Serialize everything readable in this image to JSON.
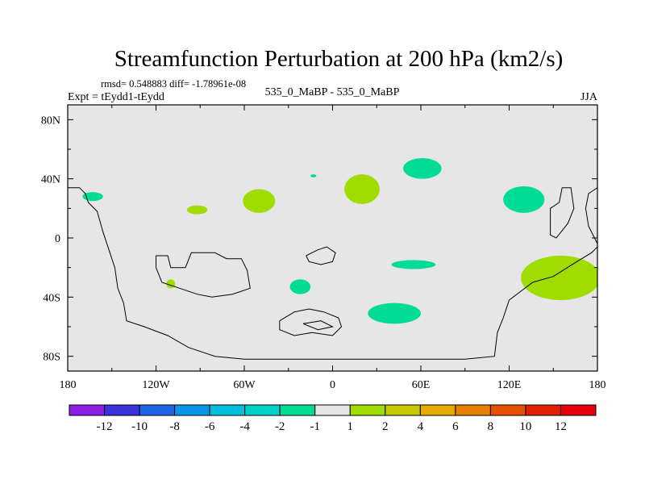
{
  "chart_data": {
    "type": "map",
    "title": "Streamfunction Perturbation at 200 hPa (km2/s)",
    "stats": "rmsd= 0.548883 diff= -1.78961e-08",
    "left_label": "Expt = tEydd1-tEydd",
    "center_label": "535_0_MaBP - 535_0_MaBP",
    "right_label": "JJA",
    "x_tick_labels": [
      "180",
      "120W",
      "60W",
      "0",
      "60E",
      "120E",
      "180"
    ],
    "x_tick_values": [
      -180,
      -120,
      -60,
      0,
      60,
      120,
      180
    ],
    "y_tick_labels": [
      "80N",
      "40N",
      "0",
      "40S",
      "80S"
    ],
    "y_tick_values": [
      80,
      40,
      0,
      -40,
      -80
    ],
    "xlim": [
      -180,
      180
    ],
    "ylim": [
      -90,
      90
    ],
    "background_color": "#e6e6e6",
    "colorbar": {
      "tick_labels": [
        "-12",
        "-10",
        "-8",
        "-6",
        "-4",
        "-2",
        "-1",
        "1",
        "2",
        "4",
        "6",
        "8",
        "10",
        "12"
      ],
      "colors": [
        "#8c1ee6",
        "#3c32dc",
        "#1e64e6",
        "#0a96e6",
        "#00bedc",
        "#00d2c8",
        "#00dc96",
        "#e6e6e6",
        "#a0dc00",
        "#c8c800",
        "#e6aa00",
        "#e68200",
        "#e65000",
        "#e61e00",
        "#e6000a"
      ]
    },
    "anomalies": [
      {
        "lon": -163,
        "lat": 28,
        "rlon": 7,
        "rlat": 3,
        "level": "-2 to -1",
        "color": "#00dc96"
      },
      {
        "lon": -92,
        "lat": 19,
        "rlon": 7,
        "rlat": 3,
        "level": "1 to 2",
        "color": "#a0dc00"
      },
      {
        "lon": -50,
        "lat": 25,
        "rlon": 11,
        "rlat": 8,
        "level": "1 to 2",
        "color": "#a0dc00"
      },
      {
        "lon": -13,
        "lat": 42,
        "rlon": 2,
        "rlat": 1,
        "level": "-2 to -1",
        "color": "#00dc96"
      },
      {
        "lon": 20,
        "lat": 33,
        "rlon": 12,
        "rlat": 10,
        "level": "1 to 2",
        "color": "#a0dc00"
      },
      {
        "lon": 61,
        "lat": 47,
        "rlon": 13,
        "rlat": 7,
        "level": "-2 to -1",
        "color": "#00dc96"
      },
      {
        "lon": 130,
        "lat": 26,
        "rlon": 14,
        "rlat": 9,
        "level": "-2 to -1",
        "color": "#00dc96"
      },
      {
        "lon": 55,
        "lat": -18,
        "rlon": 15,
        "rlat": 3,
        "level": "-2 to -1",
        "color": "#00dc96"
      },
      {
        "lon": -22,
        "lat": -33,
        "rlon": 7,
        "rlat": 5,
        "level": "-2 to -1",
        "color": "#00dc96"
      },
      {
        "lon": -110,
        "lat": -31,
        "rlon": 3,
        "rlat": 3,
        "level": "1 to 2",
        "color": "#a0dc00"
      },
      {
        "lon": 42,
        "lat": -51,
        "rlon": 18,
        "rlat": 7,
        "level": "-2 to -1",
        "color": "#00dc96"
      },
      {
        "lon": 155,
        "lat": -27,
        "rlon": 27,
        "rlat": 15,
        "level": "1 to 2",
        "color": "#a0dc00"
      }
    ],
    "coastlines": [
      {
        "name": "western-continent",
        "points": [
          [
            -180,
            34
          ],
          [
            -172,
            34
          ],
          [
            -168,
            30
          ],
          [
            -166,
            24
          ],
          [
            -160,
            18
          ],
          [
            -156,
            4
          ],
          [
            -152,
            -8
          ],
          [
            -148,
            -20
          ],
          [
            -146,
            -34
          ],
          [
            -142,
            -44
          ],
          [
            -140,
            -56
          ],
          [
            -128,
            -60
          ],
          [
            -112,
            -66
          ],
          [
            -98,
            -74
          ],
          [
            -80,
            -80
          ],
          [
            -60,
            -82
          ],
          [
            -30,
            -82
          ],
          [
            0,
            -82
          ],
          [
            30,
            -82
          ],
          [
            60,
            -82
          ],
          [
            90,
            -82
          ],
          [
            110,
            -80
          ],
          [
            112,
            -64
          ],
          [
            116,
            -54
          ],
          [
            120,
            -42
          ],
          [
            128,
            -36
          ],
          [
            136,
            -30
          ],
          [
            150,
            -26
          ],
          [
            166,
            -16
          ],
          [
            176,
            -10
          ],
          [
            180,
            -6
          ]
        ]
      },
      {
        "name": "inner-basin",
        "points": [
          [
            -120,
            -12
          ],
          [
            -112,
            -12
          ],
          [
            -110,
            -20
          ],
          [
            -100,
            -20
          ],
          [
            -96,
            -10
          ],
          [
            -80,
            -10
          ],
          [
            -72,
            -14
          ],
          [
            -62,
            -14
          ],
          [
            -58,
            -22
          ],
          [
            -56,
            -34
          ],
          [
            -68,
            -38
          ],
          [
            -82,
            -40
          ],
          [
            -92,
            -38
          ],
          [
            -104,
            -34
          ],
          [
            -116,
            -30
          ],
          [
            -120,
            -20
          ],
          [
            -120,
            -12
          ]
        ]
      },
      {
        "name": "eastern-ridge",
        "points": [
          [
            156,
            34
          ],
          [
            162,
            34
          ],
          [
            164,
            20
          ],
          [
            160,
            10
          ],
          [
            152,
            0
          ],
          [
            148,
            2
          ],
          [
            148,
            20
          ],
          [
            154,
            24
          ],
          [
            156,
            34
          ]
        ]
      },
      {
        "name": "east-edge",
        "points": [
          [
            180,
            34
          ],
          [
            174,
            30
          ],
          [
            172,
            20
          ],
          [
            174,
            8
          ],
          [
            178,
            0
          ],
          [
            180,
            -4
          ]
        ]
      },
      {
        "name": "central-islands",
        "points": [
          [
            -18,
            -12
          ],
          [
            -10,
            -8
          ],
          [
            -4,
            -6
          ],
          [
            2,
            -10
          ],
          [
            0,
            -16
          ],
          [
            -8,
            -18
          ],
          [
            -16,
            -16
          ],
          [
            -18,
            -12
          ]
        ]
      },
      {
        "name": "southern-islands",
        "points": [
          [
            -36,
            -56
          ],
          [
            -26,
            -50
          ],
          [
            -16,
            -48
          ],
          [
            -6,
            -50
          ],
          [
            4,
            -54
          ],
          [
            6,
            -60
          ],
          [
            0,
            -66
          ],
          [
            -14,
            -64
          ],
          [
            -26,
            -66
          ],
          [
            -36,
            -62
          ],
          [
            -36,
            -56
          ]
        ]
      },
      {
        "name": "southern-islet",
        "points": [
          [
            -20,
            -58
          ],
          [
            -8,
            -56
          ],
          [
            0,
            -60
          ],
          [
            -10,
            -62
          ],
          [
            -20,
            -58
          ]
        ]
      }
    ]
  }
}
